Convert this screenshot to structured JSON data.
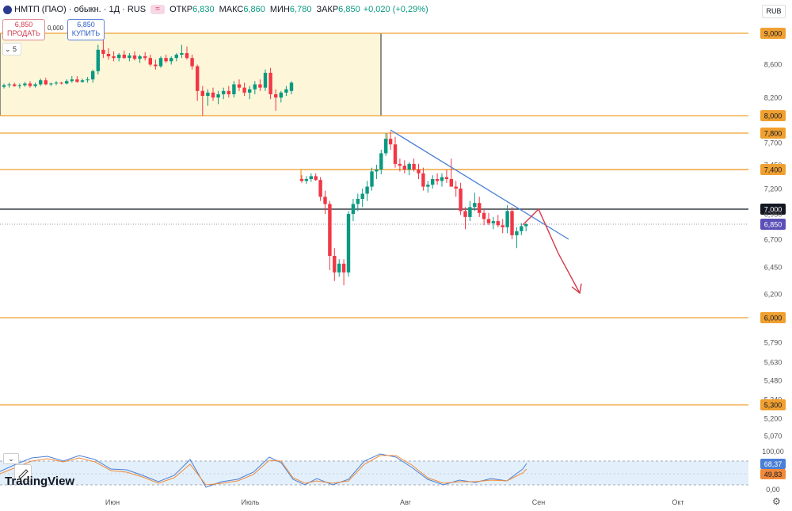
{
  "header": {
    "symbol": "НМТП (ПАО) · обыкн. · 1Д · RUS",
    "open_label": "ОТКР",
    "open": "6,830",
    "high_label": "МАКС",
    "high": "6,860",
    "low_label": "МИН",
    "low": "6,780",
    "close_label": "ЗАКР",
    "close": "6,850",
    "change": "+0,020 (+0,29%)"
  },
  "trade": {
    "sell_price": "6,850",
    "sell_label": "ПРОДАТЬ",
    "buy_price": "6,850",
    "buy_label": "КУПИТЬ",
    "spread": "0,000",
    "lots": "5"
  },
  "currency": "RUB",
  "brand": "TradingView",
  "colors": {
    "up": "#089981",
    "down": "#f23645",
    "level": "#f0a030",
    "trendline": "#4a7fd6",
    "arrow": "#d63a4a",
    "last_price": "#5b4fb8"
  },
  "chart_data": {
    "type": "candlestick",
    "x_axis_labels": [
      "Июн",
      "Июль",
      "Авг",
      "Сен",
      "Окт"
    ],
    "y_axis_labels": [
      "9,000",
      "8,600",
      "8,200",
      "8,000",
      "7,800",
      "7,700",
      "7,450",
      "7,400",
      "7,200",
      "7,000",
      "6,950",
      "6,850",
      "6,700",
      "6,450",
      "6,200",
      "6,000",
      "5,790",
      "5,630",
      "5,480",
      "5,340",
      "5,300",
      "5,200",
      "5,070"
    ],
    "horizontal_levels": [
      9.0,
      8.0,
      7.8,
      7.4,
      7.0,
      6.0,
      5.3
    ],
    "highlighted_levels": [
      "9,000",
      "8,000",
      "7,800",
      "7,400",
      "7,000",
      "6,000",
      "5,300"
    ],
    "last_price": "6,850",
    "zoom_range_box": {
      "from": 8.0,
      "to": 9.0
    },
    "candles_top_region": [
      [
        8.35,
        8.39,
        8.33,
        8.37
      ],
      [
        8.37,
        8.4,
        8.34,
        8.38
      ],
      [
        8.38,
        8.4,
        8.35,
        8.36
      ],
      [
        8.36,
        8.39,
        8.33,
        8.37
      ],
      [
        8.37,
        8.41,
        8.35,
        8.39
      ],
      [
        8.39,
        8.42,
        8.34,
        8.36
      ],
      [
        8.36,
        8.4,
        8.34,
        8.38
      ],
      [
        8.38,
        8.45,
        8.36,
        8.43
      ],
      [
        8.43,
        8.46,
        8.37,
        8.38
      ],
      [
        8.38,
        8.4,
        8.36,
        8.39
      ],
      [
        8.39,
        8.42,
        8.37,
        8.4
      ],
      [
        8.4,
        8.41,
        8.38,
        8.39
      ],
      [
        8.39,
        8.44,
        8.38,
        8.42
      ],
      [
        8.42,
        8.48,
        8.4,
        8.44
      ],
      [
        8.44,
        8.48,
        8.4,
        8.41
      ],
      [
        8.41,
        8.45,
        8.4,
        8.43
      ],
      [
        8.43,
        8.47,
        8.4,
        8.44
      ],
      [
        8.44,
        8.56,
        8.4,
        8.54
      ],
      [
        8.54,
        8.86,
        8.5,
        8.8
      ],
      [
        8.8,
        8.92,
        8.7,
        8.75
      ],
      [
        8.75,
        8.82,
        8.68,
        8.72
      ],
      [
        8.72,
        8.78,
        8.66,
        8.7
      ],
      [
        8.7,
        8.76,
        8.66,
        8.74
      ],
      [
        8.74,
        8.79,
        8.69,
        8.7
      ],
      [
        8.7,
        8.76,
        8.66,
        8.73
      ],
      [
        8.73,
        8.78,
        8.67,
        8.69
      ],
      [
        8.69,
        8.74,
        8.64,
        8.72
      ],
      [
        8.72,
        8.77,
        8.67,
        8.7
      ],
      [
        8.7,
        8.74,
        8.6,
        8.62
      ],
      [
        8.62,
        8.68,
        8.56,
        8.6
      ],
      [
        8.6,
        8.72,
        8.58,
        8.7
      ],
      [
        8.7,
        8.74,
        8.64,
        8.66
      ],
      [
        8.66,
        8.72,
        8.62,
        8.7
      ],
      [
        8.7,
        8.76,
        8.66,
        8.74
      ],
      [
        8.74,
        8.86,
        8.7,
        8.76
      ],
      [
        8.76,
        8.84,
        8.68,
        8.7
      ],
      [
        8.7,
        8.74,
        8.56,
        8.6
      ],
      [
        8.6,
        8.62,
        8.18,
        8.3
      ],
      [
        8.3,
        8.36,
        8.0,
        8.24
      ],
      [
        8.24,
        8.32,
        8.12,
        8.28
      ],
      [
        8.28,
        8.34,
        8.18,
        8.22
      ],
      [
        8.22,
        8.3,
        8.14,
        8.26
      ],
      [
        8.26,
        8.34,
        8.2,
        8.3
      ],
      [
        8.3,
        8.36,
        8.22,
        8.26
      ],
      [
        8.26,
        8.42,
        8.22,
        8.38
      ],
      [
        8.38,
        8.44,
        8.3,
        8.34
      ],
      [
        8.34,
        8.4,
        8.24,
        8.28
      ],
      [
        8.28,
        8.36,
        8.2,
        8.32
      ],
      [
        8.32,
        8.42,
        8.26,
        8.38
      ],
      [
        8.38,
        8.44,
        8.3,
        8.34
      ],
      [
        8.34,
        8.56,
        8.3,
        8.52
      ],
      [
        8.52,
        8.58,
        8.2,
        8.26
      ],
      [
        8.26,
        8.32,
        8.06,
        8.22
      ],
      [
        8.22,
        8.3,
        8.16,
        8.28
      ],
      [
        8.28,
        8.36,
        8.24,
        8.32
      ],
      [
        8.3,
        8.42,
        8.26,
        8.4
      ]
    ],
    "candles_main": [
      [
        7.3,
        7.34,
        7.26,
        7.28
      ],
      [
        7.28,
        7.33,
        7.25,
        7.3
      ],
      [
        7.3,
        7.36,
        7.27,
        7.33
      ],
      [
        7.33,
        7.36,
        7.28,
        7.29
      ],
      [
        7.29,
        7.32,
        7.08,
        7.12
      ],
      [
        7.12,
        7.18,
        6.95,
        7.05
      ],
      [
        7.05,
        7.08,
        6.42,
        6.55
      ],
      [
        6.55,
        6.62,
        6.32,
        6.4
      ],
      [
        6.4,
        6.52,
        6.36,
        6.48
      ],
      [
        6.48,
        6.52,
        6.28,
        6.4
      ],
      [
        6.4,
        6.98,
        6.36,
        6.95
      ],
      [
        6.95,
        7.1,
        6.88,
        7.05
      ],
      [
        7.05,
        7.15,
        6.98,
        7.1
      ],
      [
        7.1,
        7.2,
        7.02,
        7.15
      ],
      [
        7.15,
        7.28,
        7.08,
        7.22
      ],
      [
        7.22,
        7.42,
        7.18,
        7.38
      ],
      [
        7.38,
        7.45,
        7.3,
        7.4
      ],
      [
        7.4,
        7.62,
        7.35,
        7.58
      ],
      [
        7.58,
        7.8,
        7.55,
        7.74
      ],
      [
        7.74,
        7.82,
        7.62,
        7.68
      ],
      [
        7.68,
        7.76,
        7.42,
        7.46
      ],
      [
        7.46,
        7.52,
        7.38,
        7.44
      ],
      [
        7.44,
        7.5,
        7.36,
        7.4
      ],
      [
        7.4,
        7.48,
        7.34,
        7.46
      ],
      [
        7.46,
        7.52,
        7.38,
        7.4
      ],
      [
        7.4,
        7.46,
        7.3,
        7.36
      ],
      [
        7.36,
        7.42,
        7.18,
        7.22
      ],
      [
        7.22,
        7.28,
        7.16,
        7.24
      ],
      [
        7.24,
        7.34,
        7.2,
        7.3
      ],
      [
        7.3,
        7.36,
        7.24,
        7.28
      ],
      [
        7.28,
        7.36,
        7.22,
        7.32
      ],
      [
        7.32,
        7.4,
        7.26,
        7.3
      ],
      [
        7.3,
        7.52,
        7.26,
        7.22
      ],
      [
        7.22,
        7.28,
        7.12,
        7.2
      ],
      [
        7.2,
        7.26,
        6.94,
        6.98
      ],
      [
        6.98,
        7.02,
        6.8,
        6.92
      ],
      [
        6.92,
        7.08,
        6.88,
        7.02
      ],
      [
        7.02,
        7.16,
        6.98,
        7.06
      ],
      [
        7.06,
        7.12,
        6.92,
        6.96
      ],
      [
        6.96,
        7.0,
        6.84,
        6.9
      ],
      [
        6.9,
        6.96,
        6.84,
        6.86
      ],
      [
        6.86,
        6.92,
        6.8,
        6.88
      ],
      [
        6.88,
        6.94,
        6.82,
        6.84
      ],
      [
        6.84,
        6.9,
        6.76,
        6.82
      ],
      [
        6.82,
        7.04,
        6.76,
        6.98
      ],
      [
        6.98,
        7.02,
        6.7,
        6.74
      ],
      [
        6.74,
        6.82,
        6.62,
        6.78
      ],
      [
        6.78,
        6.86,
        6.74,
        6.83
      ],
      [
        6.83,
        6.86,
        6.78,
        6.85
      ]
    ],
    "stochastic": {
      "k_label": "68,37",
      "d_label": "49,83",
      "levels": [
        "100,00",
        "0,00"
      ]
    }
  }
}
